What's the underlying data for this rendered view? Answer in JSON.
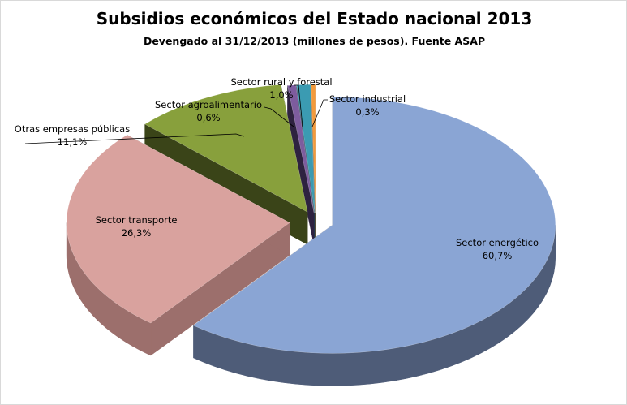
{
  "chart_data": {
    "type": "pie",
    "style": "3d-exploded",
    "title": "Subsidios económicos del Estado nacional 2013",
    "subtitle": "Devengado al 31/12/2013 (millones de pesos). Fuente ASAP",
    "slices": [
      {
        "label": "Sector energético",
        "value": 60.7,
        "display": "60,7%",
        "color": "#8aa5d4",
        "side": "#4e5c78"
      },
      {
        "label": "Sector transporte",
        "value": 26.3,
        "display": "26,3%",
        "color": "#d9a29e",
        "side": "#9c6f6c"
      },
      {
        "label": "Otras empresas públicas",
        "value": 11.1,
        "display": "11,1%",
        "color": "#88a03c",
        "side": "#3a4418"
      },
      {
        "label": "Sector agroalimentario",
        "value": 0.6,
        "display": "0,6%",
        "color": "#7d5c9e",
        "side": "#2e2240"
      },
      {
        "label": "Sector rural y forestal",
        "value": 1.0,
        "display": "1,0%",
        "color": "#3b9bb2",
        "side": "#1d4e5a"
      },
      {
        "label": "Sector industrial",
        "value": 0.3,
        "display": "0,3%",
        "color": "#f29a3c",
        "side": "#8a5520"
      }
    ]
  }
}
